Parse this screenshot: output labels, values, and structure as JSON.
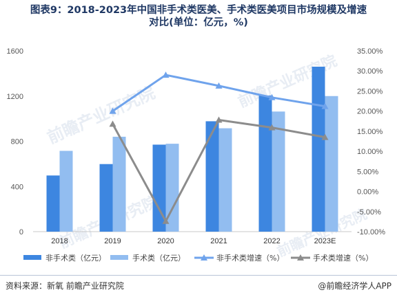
{
  "title": {
    "line1": "图表9：2018-2023年中国非手术类医美、手术类医美项目市场规模及增速",
    "line2": "对比(单位：亿元，%)"
  },
  "footer": {
    "source": "资料来源：新氧 前瞻产业研究院",
    "brand": "@前瞻经济学人APP"
  },
  "watermark": "前瞻产业研究院",
  "colors": {
    "non_surgical_bar": "#3d86e0",
    "surgical_bar": "#92bdf0",
    "non_surgical_line": "#6fa3ec",
    "surgical_line": "#8c8c8c",
    "title": "#1f3864"
  },
  "chart_data": {
    "type": "bar",
    "categories": [
      "2018",
      "2019",
      "2020",
      "2021",
      "2022",
      "2023E"
    ],
    "series": [
      {
        "name": "非手术类（亿元）",
        "kind": "bar",
        "axis": "left",
        "values": [
          497,
          598,
          770,
          977,
          1205,
          1460
        ]
      },
      {
        "name": "手术类（亿元）",
        "kind": "bar",
        "axis": "left",
        "values": [
          715,
          840,
          778,
          915,
          1063,
          1200
        ]
      },
      {
        "name": "非手术类增速（%）",
        "kind": "line",
        "axis": "right",
        "values": [
          null,
          20.0,
          29.0,
          26.3,
          23.4,
          21.2
        ]
      },
      {
        "name": "手术类增速（%）",
        "kind": "line",
        "axis": "right",
        "values": [
          null,
          16.8,
          -7.4,
          17.8,
          15.9,
          13.5
        ]
      }
    ],
    "left_axis": {
      "ylim": [
        0,
        1600
      ],
      "ticks": [
        "0",
        "400",
        "800",
        "1200",
        "1600"
      ]
    },
    "right_axis": {
      "ylim": [
        -10,
        35
      ],
      "ticks": [
        "-10.00%",
        "-5.00%",
        "0.00%",
        "5.00%",
        "10.00%",
        "15.00%",
        "20.00%",
        "25.00%",
        "30.00%",
        "35.00%"
      ]
    },
    "legend_position": "bottom",
    "grid": false
  }
}
